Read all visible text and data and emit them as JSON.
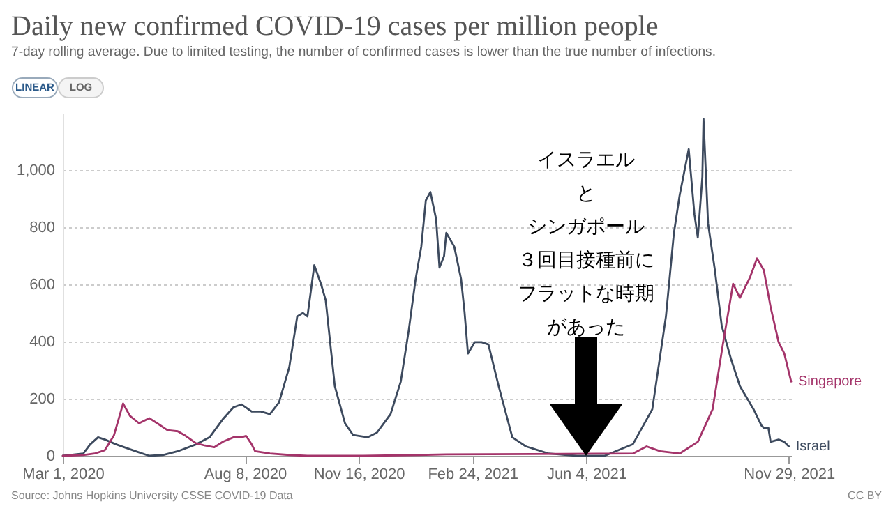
{
  "chart_data": {
    "type": "line",
    "title": "Daily new confirmed COVID-19 cases per million people",
    "subtitle": "7-day rolling average. Due to limited testing, the number of confirmed cases is lower than the true number of infections.",
    "xlim": [
      "2020-03-01",
      "2021-12-01"
    ],
    "xticks": [
      {
        "value": "2020-03-01",
        "label": "Mar 1, 2020"
      },
      {
        "value": "2020-08-08",
        "label": "Aug 8, 2020"
      },
      {
        "value": "2020-11-16",
        "label": "Nov 16, 2020"
      },
      {
        "value": "2021-02-24",
        "label": "Feb 24, 2021"
      },
      {
        "value": "2021-06-04",
        "label": "Jun 4, 2021"
      },
      {
        "value": "2021-11-29",
        "label": "Nov 29, 2021"
      }
    ],
    "ylim": [
      0,
      1200
    ],
    "yticks": [
      0,
      200,
      400,
      600,
      800,
      {
        "value": 1000,
        "label": "1,000"
      }
    ],
    "grid": "y",
    "line_style": "solid",
    "series": [
      {
        "name": "Israel",
        "color": "#3d4a5e",
        "x": [
          "2020-03-01",
          "2020-03-19",
          "2020-03-25",
          "2020-04-01",
          "2020-04-07",
          "2020-04-17",
          "2020-05-04",
          "2020-05-16",
          "2020-05-28",
          "2020-06-10",
          "2020-06-26",
          "2020-07-08",
          "2020-07-20",
          "2020-07-29",
          "2020-08-05",
          "2020-08-14",
          "2020-08-22",
          "2020-08-30",
          "2020-09-07",
          "2020-09-16",
          "2020-09-23",
          "2020-09-28",
          "2020-10-02",
          "2020-10-08",
          "2020-10-14",
          "2020-10-18",
          "2020-10-26",
          "2020-11-04",
          "2020-11-11",
          "2020-11-24",
          "2020-12-02",
          "2020-12-14",
          "2020-12-23",
          "2020-12-30",
          "2021-01-05",
          "2021-01-10",
          "2021-01-14",
          "2021-01-18",
          "2021-01-23",
          "2021-01-26",
          "2021-01-30",
          "2021-02-01",
          "2021-02-08",
          "2021-02-14",
          "2021-02-17",
          "2021-02-20",
          "2021-02-26",
          "2021-03-04",
          "2021-03-10",
          "2021-03-19",
          "2021-03-31",
          "2021-04-12",
          "2021-05-02",
          "2021-05-27",
          "2021-06-20",
          "2021-07-15",
          "2021-08-01",
          "2021-08-13",
          "2021-08-20",
          "2021-08-25",
          "2021-09-02",
          "2021-09-07",
          "2021-09-10",
          "2021-09-14",
          "2021-09-15",
          "2021-09-19",
          "2021-09-25",
          "2021-10-01",
          "2021-10-09",
          "2021-10-17",
          "2021-10-29",
          "2021-11-05",
          "2021-11-07",
          "2021-11-11",
          "2021-11-13",
          "2021-11-20",
          "2021-11-25",
          "2021-11-29"
        ],
        "values": [
          0,
          8,
          40,
          65,
          57,
          40,
          16,
          0,
          3,
          16,
          40,
          65,
          130,
          170,
          180,
          155,
          155,
          146,
          187,
          310,
          488,
          500,
          488,
          667,
          600,
          545,
          244,
          114,
          73,
          65,
          81,
          146,
          260,
          440,
          618,
          732,
          894,
          923,
          829,
          659,
          699,
          780,
          732,
          618,
          504,
          358,
          398,
          398,
          390,
          244,
          65,
          33,
          8,
          0,
          0,
          41,
          163,
          488,
          780,
          911,
          1073,
          846,
          764,
          976,
          1179,
          813,
          650,
          455,
          341,
          244,
          163,
          106,
          98,
          98,
          49,
          57,
          49,
          33
        ]
      },
      {
        "name": "Singapore",
        "color": "#a4346a",
        "x": [
          "2020-03-01",
          "2020-03-19",
          "2020-03-29",
          "2020-04-07",
          "2020-04-15",
          "2020-04-23",
          "2020-04-29",
          "2020-05-07",
          "2020-05-16",
          "2020-05-23",
          "2020-06-01",
          "2020-06-10",
          "2020-06-17",
          "2020-06-26",
          "2020-07-04",
          "2020-07-12",
          "2020-07-20",
          "2020-07-29",
          "2020-08-05",
          "2020-08-09",
          "2020-08-14",
          "2020-08-17",
          "2020-08-30",
          "2020-09-16",
          "2020-10-02",
          "2020-11-20",
          "2021-01-08",
          "2021-02-01",
          "2021-07-15",
          "2021-07-27",
          "2021-08-08",
          "2021-08-25",
          "2021-09-10",
          "2021-09-23",
          "2021-10-02",
          "2021-10-11",
          "2021-10-17",
          "2021-10-26",
          "2021-11-01",
          "2021-11-07",
          "2021-11-13",
          "2021-11-20",
          "2021-11-25",
          "2021-12-01"
        ],
        "values": [
          0,
          3,
          8,
          20,
          72,
          183,
          140,
          114,
          132,
          114,
          90,
          86,
          70,
          44,
          36,
          30,
          50,
          65,
          65,
          70,
          40,
          16,
          8,
          3,
          0,
          0,
          3,
          5,
          8,
          33,
          16,
          8,
          49,
          163,
          390,
          602,
          553,
          626,
          691,
          650,
          520,
          398,
          358,
          260
        ]
      }
    ],
    "annotations": [
      "イスラエルとシンガポール３回目接種前にフラットな時期があった",
      "Source: Johns Hopkins University CSSE COVID-19 Data",
      "CC BY",
      "LINEAR",
      "LOG"
    ]
  }
}
